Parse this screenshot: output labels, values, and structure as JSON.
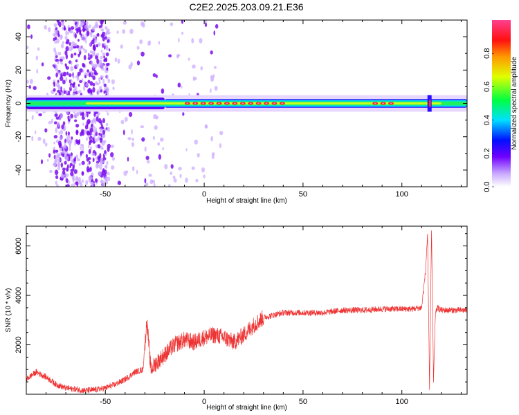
{
  "title": "C2E2.2025.203.09.21.E36",
  "chart_data": [
    {
      "type": "heatmap",
      "xlabel": "Height of straight line (km)",
      "ylabel": "Frequency (Hz)",
      "xlim": [
        -90,
        133
      ],
      "ylim": [
        -50,
        50
      ],
      "xticks": [
        -50,
        0,
        50,
        100
      ],
      "yticks": [
        -40,
        -20,
        0,
        20,
        40
      ],
      "grid": false,
      "colorbar": {
        "label": "Normalized spectral amplitude",
        "range": [
          0,
          1
        ],
        "ticks": [
          "0.0",
          "0.2",
          "0.4",
          "0.6",
          "0.8"
        ],
        "colormap": "rainbow (violet → blue → cyan → green → yellow → red → magenta)"
      },
      "features": {
        "noise_band_x": [
          -76,
          -48
        ],
        "centerline_frequency_hz": 0,
        "peak_segments_x": [
          [
            -10,
            40
          ],
          [
            85,
            97
          ]
        ],
        "spike_x": 114
      }
    },
    {
      "type": "line",
      "xlabel": "Height of straight line (km)",
      "ylabel": "SNR (10 * v/v)",
      "xlim": [
        -90,
        133
      ],
      "ylim": [
        0,
        6800
      ],
      "xticks": [
        -50,
        0,
        50,
        100
      ],
      "yticks": [
        2000,
        4000,
        6000
      ],
      "grid": false,
      "series": [
        {
          "color": "#ee3333",
          "x": [
            -90,
            -85,
            -80,
            -75,
            -70,
            -65,
            -60,
            -55,
            -50,
            -45,
            -40,
            -35,
            -31,
            -29,
            -27,
            -25,
            -20,
            -15,
            -10,
            -5,
            0,
            5,
            10,
            15,
            20,
            25,
            30,
            35,
            40,
            50,
            60,
            70,
            80,
            90,
            100,
            105,
            110,
            112,
            113,
            114,
            115,
            116,
            117,
            118,
            120,
            125,
            133
          ],
          "y": [
            600,
            900,
            700,
            400,
            250,
            200,
            150,
            180,
            250,
            400,
            600,
            900,
            1000,
            3000,
            1000,
            1200,
            1600,
            2000,
            2200,
            2100,
            2300,
            2400,
            2300,
            2100,
            2400,
            2800,
            3100,
            3200,
            3300,
            3300,
            3300,
            3400,
            3400,
            3450,
            3450,
            3450,
            3500,
            5000,
            6500,
            200,
            6700,
            500,
            3300,
            3500,
            3400,
            3400,
            3400
          ]
        }
      ]
    }
  ]
}
